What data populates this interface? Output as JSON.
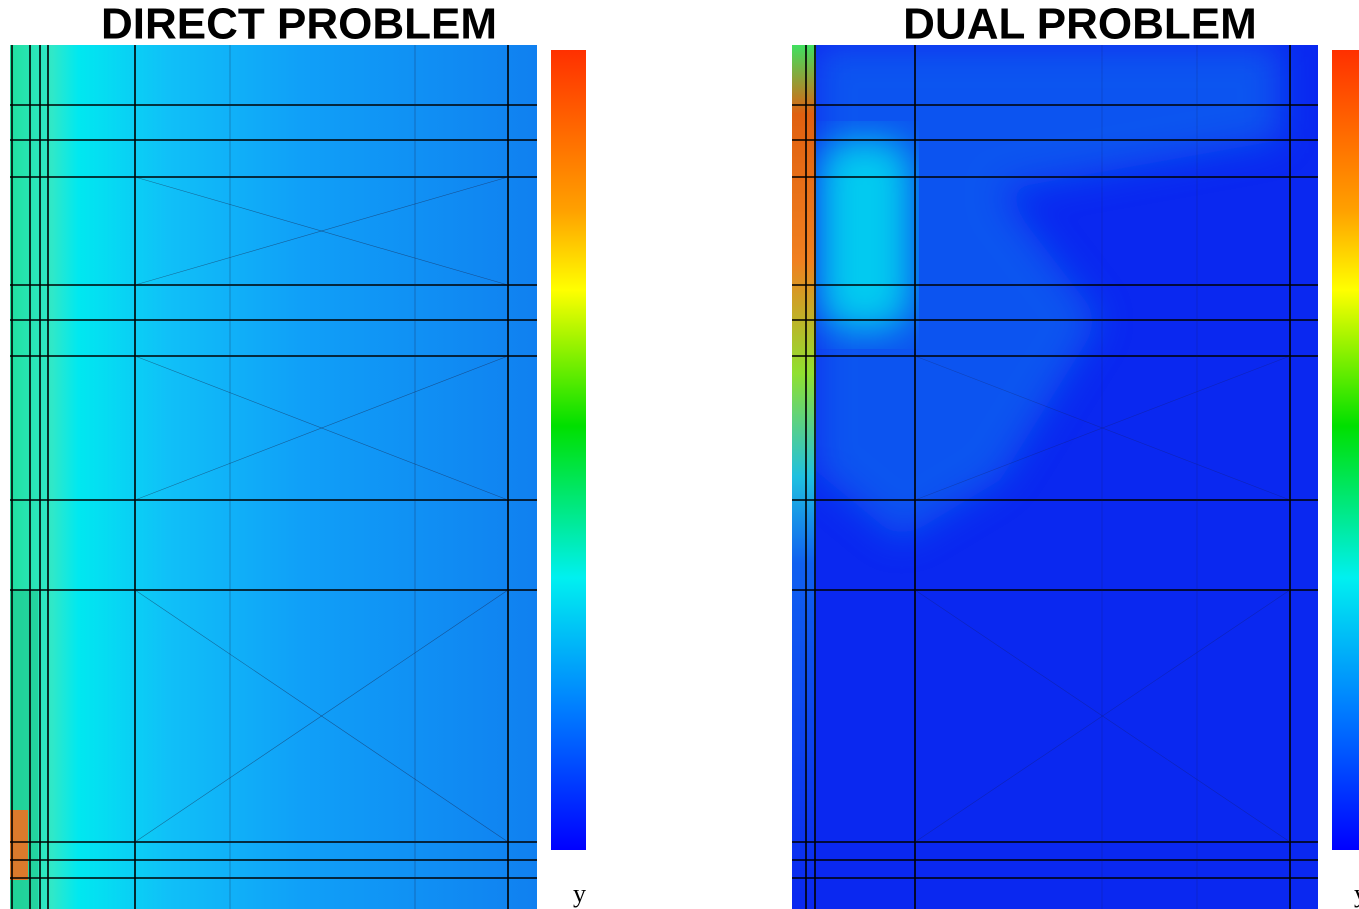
{
  "panels": [
    {
      "title": "DIRECT PROBLEM",
      "axis_label": "y"
    },
    {
      "title": "DUAL PROBLEM",
      "axis_label": "y"
    }
  ]
}
